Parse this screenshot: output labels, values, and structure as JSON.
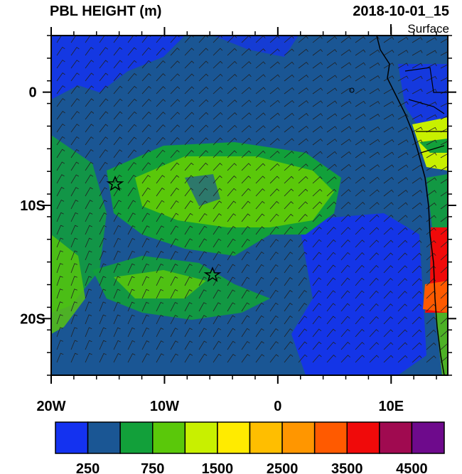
{
  "header": {
    "title": "PBL HEIGHT (m)",
    "time": "2018-10-01_15",
    "level": "Surface"
  },
  "map": {
    "lonlim": [
      -20,
      15
    ],
    "latlim": [
      -25,
      5
    ],
    "lon_ticks": [
      {
        "value": -20,
        "label": "20W"
      },
      {
        "value": -10,
        "label": "10W"
      },
      0,
      {
        "value": 10,
        "label": "10E"
      }
    ],
    "lat_ticks": [
      0,
      {
        "value": -10,
        "label": "10S"
      },
      {
        "value": -20,
        "label": "20S"
      }
    ]
  },
  "colorbar": {
    "colors": [
      "#1432f0",
      "#1a5694",
      "#12a03a",
      "#5ac80a",
      "#c8f000",
      "#ffeb00",
      "#ffbe00",
      "#ff9600",
      "#ff5a00",
      "#f00a0a",
      "#a00a50",
      "#6e0a8c"
    ],
    "labels": [
      250,
      750,
      1500,
      2500,
      3500,
      4500
    ]
  }
}
